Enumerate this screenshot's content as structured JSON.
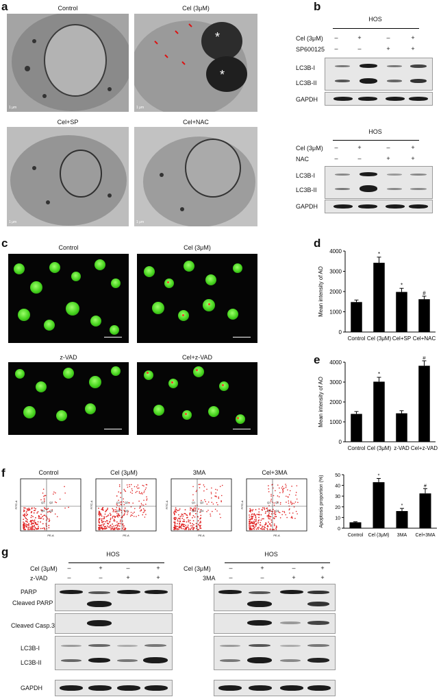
{
  "panel_labels": {
    "a": "a",
    "b": "b",
    "c": "c",
    "d": "d",
    "e": "e",
    "f": "f",
    "g": "g"
  },
  "panel_a": {
    "titles": [
      "Control",
      "Cel (3μM)",
      "Cel+SP",
      "Cel+NAC"
    ],
    "scale_labels": [
      "1 μm",
      "1 μm",
      "1 μm",
      "1 μm"
    ]
  },
  "panel_b": {
    "blots": [
      {
        "cell_line": "HOS",
        "row_labels": [
          "Cel (3μM)",
          "SP600125"
        ],
        "signs": [
          [
            "–",
            "+",
            "–",
            "+"
          ],
          [
            "–",
            "–",
            "+",
            "+"
          ]
        ],
        "bands": [
          "LC3B-I",
          "LC3B-II",
          "GAPDH"
        ]
      },
      {
        "cell_line": "HOS",
        "row_labels": [
          "Cel (3μM)",
          "NAC"
        ],
        "signs": [
          [
            "–",
            "+",
            "–",
            "+"
          ],
          [
            "–",
            "–",
            "+",
            "+"
          ]
        ],
        "bands": [
          "LC3B-I",
          "LC3B-II",
          "GAPDH"
        ]
      }
    ]
  },
  "panel_c": {
    "titles": [
      "Control",
      "Cel (3μM)",
      "z-VAD",
      "Cel+z-VAD"
    ]
  },
  "panel_f": {
    "titles": [
      "Control",
      "Cel (3μM)",
      "3MA",
      "Cel+3MA"
    ],
    "x_axis_label": "PE-A",
    "y_axis_label": "FITC-A",
    "quadrants": [
      "Q1",
      "Q2",
      "Q3",
      "Q4"
    ]
  },
  "panel_g": {
    "blots": [
      {
        "cell_line": "HOS",
        "row_labels": [
          "Cel (3μM)",
          "z-VAD"
        ],
        "signs": [
          [
            "–",
            "+",
            "–",
            "+"
          ],
          [
            "–",
            "–",
            "+",
            "+"
          ]
        ],
        "bands": [
          "PARP",
          "Cleaved PARP",
          "Cleaved Casp.3",
          "LC3B-I",
          "LC3B-II",
          "GAPDH"
        ]
      },
      {
        "cell_line": "HOS",
        "row_labels": [
          "Cel (3μM)",
          "3MA"
        ],
        "signs": [
          [
            "–",
            "+",
            "–",
            "+"
          ],
          [
            "–",
            "–",
            "+",
            "+"
          ]
        ],
        "bands": []
      }
    ]
  },
  "chart_data": [
    {
      "type": "bar",
      "panel": "d",
      "categories": [
        "Control",
        "Cel (3μM)",
        "Cel+SP",
        "Cel+NAC"
      ],
      "values": [
        1480,
        3420,
        1980,
        1620
      ],
      "errors": [
        100,
        280,
        180,
        150
      ],
      "markers": [
        "",
        "*",
        "*",
        "#"
      ],
      "ylabel": "Mean intensity of AO",
      "ylim": [
        0,
        4000
      ],
      "yticks": [
        0,
        1000,
        2000,
        3000,
        4000
      ]
    },
    {
      "type": "bar",
      "panel": "e",
      "categories": [
        "Control",
        "Cel (3μM)",
        "z-VAD",
        "Cel+z-VAD"
      ],
      "values": [
        1400,
        3020,
        1430,
        3820
      ],
      "errors": [
        120,
        220,
        130,
        250
      ],
      "markers": [
        "",
        "*",
        "",
        "#"
      ],
      "ylabel": "Mean intensity of AO",
      "ylim": [
        0,
        4000
      ],
      "yticks": [
        0,
        1000,
        2000,
        3000,
        4000
      ]
    },
    {
      "type": "bar",
      "panel": "f",
      "categories": [
        "Control",
        "Cel (3μM)",
        "3MA",
        "Cel+3MA"
      ],
      "values": [
        5.5,
        43,
        16,
        32.5
      ],
      "errors": [
        0.5,
        3.5,
        2.5,
        4.5
      ],
      "markers": [
        "",
        "*",
        "*",
        "#"
      ],
      "ylabel": "Apoptosis proportion (%)",
      "ylim": [
        0,
        50
      ],
      "yticks": [
        0,
        10,
        20,
        30,
        40,
        50
      ]
    }
  ]
}
